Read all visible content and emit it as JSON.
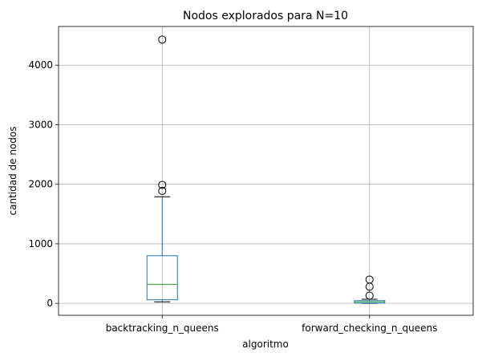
{
  "chart_data": {
    "type": "boxplot",
    "title": "Nodos explorados para N=10",
    "xlabel": "algoritmo",
    "ylabel": "cantidad de nodos",
    "ylim": [
      -200,
      4650
    ],
    "yticks": [
      0,
      1000,
      2000,
      3000,
      4000
    ],
    "grid": true,
    "categories": [
      "backtracking_n_queens",
      "forward_checking_n_queens"
    ],
    "boxes": [
      {
        "name": "backtracking_n_queens",
        "whisker_low": 25,
        "q1": 60,
        "median": 320,
        "q3": 800,
        "whisker_high": 1790,
        "outliers": [
          1890,
          1990,
          4430
        ]
      },
      {
        "name": "forward_checking_n_queens",
        "whisker_low": 0,
        "q1": 5,
        "median": 25,
        "q3": 45,
        "whisker_high": 70,
        "outliers": [
          130,
          280,
          400
        ]
      }
    ],
    "colors": {
      "box": "#1f77b4",
      "median": "#2ca02c",
      "whisker": "#1f77b4",
      "cap": "#000000",
      "grid": "#b0b0b0",
      "outlier": "#000000"
    }
  }
}
